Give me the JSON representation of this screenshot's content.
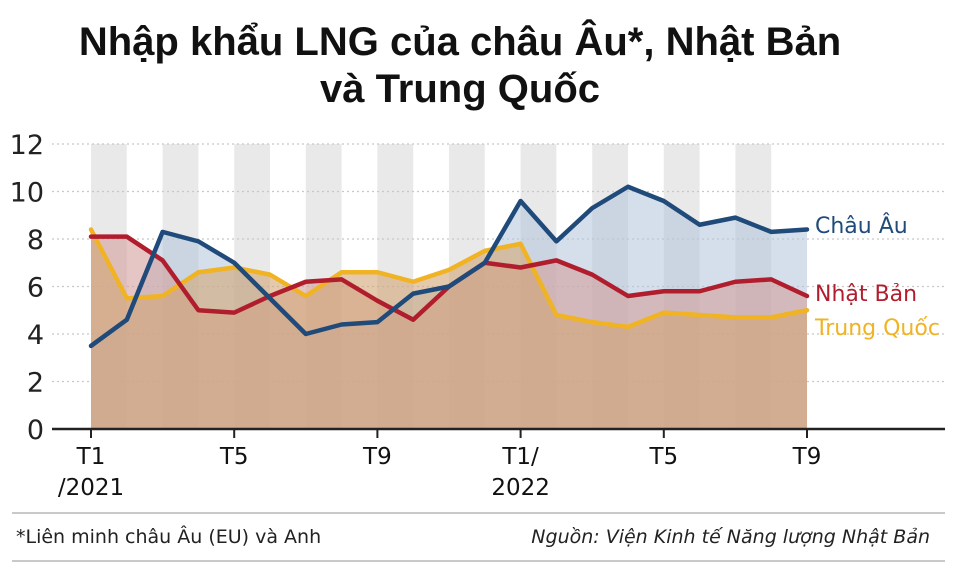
{
  "chart_data": {
    "type": "area",
    "title": "Nhập khẩu LNG của châu Âu*, Nhật Bản và Trung Quốc",
    "title_lines": [
      "Nhập khẩu LNG của châu Âu*, Nhật Bản",
      "và Trung Quốc"
    ],
    "ylim": [
      0,
      12
    ],
    "yticks": [
      "0",
      "2",
      "4",
      "6",
      "8",
      "10",
      "12"
    ],
    "x_count": 21,
    "xticks": [
      {
        "index": 0,
        "lines": [
          "T1",
          "/2021"
        ]
      },
      {
        "index": 4,
        "lines": [
          "T5"
        ]
      },
      {
        "index": 8,
        "lines": [
          "T9"
        ]
      },
      {
        "index": 12,
        "lines": [
          "T1/",
          "2022"
        ]
      },
      {
        "index": 16,
        "lines": [
          "T5"
        ]
      },
      {
        "index": 20,
        "lines": [
          "T9"
        ]
      }
    ],
    "grid": "alternating vertical bands",
    "series": [
      {
        "name": "Châu Âu",
        "color": "#1f4a7a",
        "fill": "#b3c4dd",
        "values": [
          3.5,
          4.6,
          8.3,
          7.9,
          7.0,
          5.5,
          4.0,
          4.4,
          4.5,
          5.7,
          6.0,
          7.0,
          9.6,
          7.9,
          9.3,
          10.2,
          9.6,
          8.6,
          8.9,
          8.3,
          8.4
        ]
      },
      {
        "name": "Nhật Bản",
        "color": "#b01e2e",
        "fill": "#d3a09c",
        "values": [
          8.1,
          8.1,
          7.1,
          5.0,
          4.9,
          5.6,
          6.2,
          6.3,
          5.4,
          4.6,
          6.0,
          7.0,
          6.8,
          7.1,
          6.5,
          5.6,
          5.8,
          5.8,
          6.2,
          6.3,
          5.6
        ]
      },
      {
        "name": "Trung Quốc",
        "color": "#f0b323",
        "fill": "#d2a574",
        "values": [
          8.4,
          5.5,
          5.6,
          6.6,
          6.8,
          6.5,
          5.6,
          6.6,
          6.6,
          6.2,
          6.7,
          7.5,
          7.8,
          4.8,
          4.5,
          4.3,
          4.9,
          4.8,
          4.7,
          4.7,
          5.0
        ]
      }
    ],
    "footnote": "*Liên minh châu Âu (EU) và Anh",
    "source": "Nguồn: Viện Kinh tế Năng lượng Nhật Bản"
  }
}
